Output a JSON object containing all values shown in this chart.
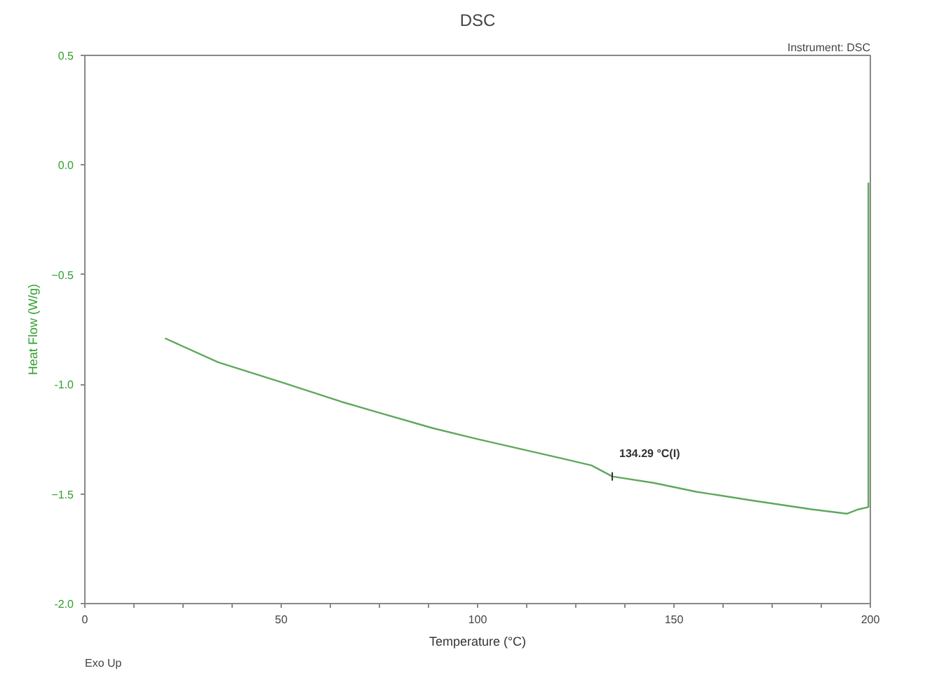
{
  "chart_data": {
    "type": "line",
    "title": "DSC",
    "xlabel": "Temperature (°C)",
    "ylabel": "Heat Flow (W/g)",
    "annotations": [
      "Instrument: DSC",
      "Exo Up",
      {
        "text": "134.29 °C(I)",
        "x": 134.29,
        "y": -1.42
      }
    ],
    "series": [
      {
        "color": "#5fa85f",
        "x": [
          20.4,
          34,
          50,
          65.4,
          75,
          88.6,
          100,
          114.6,
          122,
          129,
          134.3,
          145,
          155.7,
          170,
          185,
          194,
          197,
          199.5,
          199.5,
          199.5
        ],
        "values": [
          -0.79,
          -0.9,
          -0.99,
          -1.08,
          -1.13,
          -1.2,
          -1.25,
          -1.31,
          -1.34,
          -1.37,
          -1.42,
          -1.45,
          -1.49,
          -1.53,
          -1.57,
          -1.59,
          -1.57,
          -1.56,
          -0.7,
          -0.08
        ]
      }
    ],
    "xlim": [
      0,
      200
    ],
    "ylim": [
      -2.0,
      0.5
    ],
    "xticks": [
      0,
      {
        "value": 12.5,
        "label": null
      },
      {
        "value": 25,
        "label": null
      },
      {
        "value": 37.5,
        "label": null
      },
      50,
      {
        "value": 62.5,
        "label": null
      },
      {
        "value": 75,
        "label": null
      },
      {
        "value": 87.5,
        "label": null
      },
      100,
      {
        "value": 112.5,
        "label": null
      },
      {
        "value": 125,
        "label": null
      },
      {
        "value": 137.5,
        "label": null
      },
      150,
      {
        "value": 162.5,
        "label": null
      },
      {
        "value": 175,
        "label": null
      },
      {
        "value": 187.5,
        "label": null
      },
      200
    ],
    "yticks": [
      {
        "value": -2.0,
        "label": "-2.0"
      },
      -1.5,
      {
        "value": -1.0,
        "label": "-1.0"
      },
      -0.5,
      {
        "value": 0.0,
        "label": "0.0"
      },
      0.5
    ],
    "grid": false,
    "marker": "none",
    "line_style": "solid"
  }
}
